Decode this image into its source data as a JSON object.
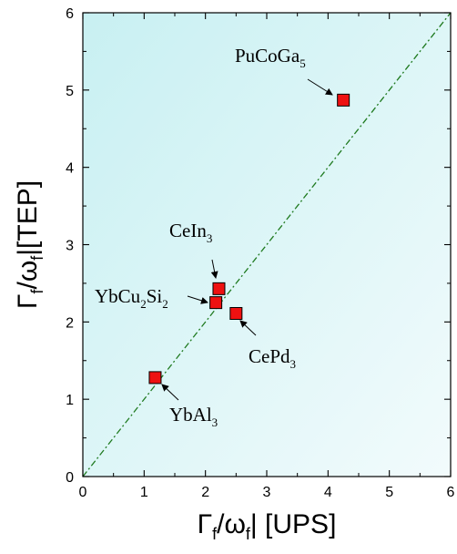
{
  "chart_data": {
    "type": "scatter",
    "xlabel": {
      "main": "Γ",
      "sub1": "f",
      "mid": "/ω",
      "sub2": "f",
      "end": "| [UPS]"
    },
    "ylabel": {
      "main": "Γ",
      "sub1": "f",
      "mid": "/ω",
      "sub2": "f",
      "end": "|[TEP]"
    },
    "xlim": [
      0,
      6
    ],
    "ylim": [
      0,
      6
    ],
    "x_ticks": [
      0,
      1,
      2,
      3,
      4,
      5,
      6
    ],
    "y_ticks": [
      0,
      1,
      2,
      3,
      4,
      5,
      6
    ],
    "reference_line": {
      "x": [
        0,
        6
      ],
      "y": [
        0,
        6
      ],
      "style": "dash-dot",
      "color": "#1f7a1f"
    },
    "background_gradient": [
      "#c8f0f2",
      "#f2fbfc"
    ],
    "marker_color": "#ee1111",
    "points": [
      {
        "name": "PuCoGa5",
        "label_parts": [
          [
            "PuCoGa",
            ""
          ],
          [
            "5",
            "sub"
          ]
        ],
        "x": 4.25,
        "y": 4.87
      },
      {
        "name": "CeIn3",
        "label_parts": [
          [
            "CeIn",
            ""
          ],
          [
            "3",
            "sub"
          ]
        ],
        "x": 2.22,
        "y": 2.43
      },
      {
        "name": "YbCu2Si2",
        "label_parts": [
          [
            "YbCu",
            ""
          ],
          [
            "2",
            "sub"
          ],
          [
            "Si",
            ""
          ],
          [
            "2",
            "sub"
          ]
        ],
        "x": 2.17,
        "y": 2.25
      },
      {
        "name": "CePd3",
        "label_parts": [
          [
            "CePd",
            ""
          ],
          [
            "3",
            "sub"
          ]
        ],
        "x": 2.5,
        "y": 2.11
      },
      {
        "name": "YbAl3",
        "label_parts": [
          [
            "YbAl",
            ""
          ],
          [
            "3",
            "sub"
          ]
        ],
        "x": 1.18,
        "y": 1.28
      }
    ]
  }
}
